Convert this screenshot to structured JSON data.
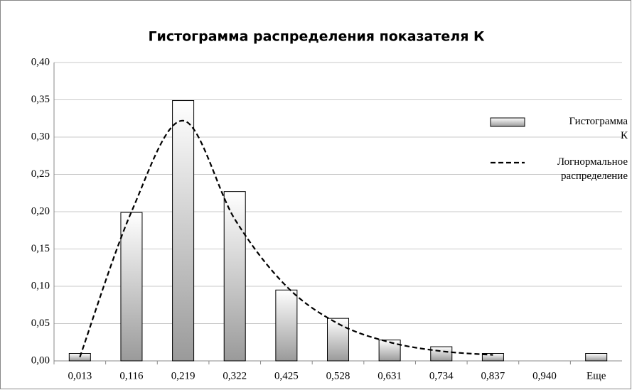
{
  "chart_data": {
    "type": "bar",
    "title": "Гистограмма распределения показателя К",
    "categories": [
      "0,013",
      "0,116",
      "0,219",
      "0,322",
      "0,425",
      "0,528",
      "0,631",
      "0,734",
      "0,837",
      "0,940",
      "Еще"
    ],
    "series": [
      {
        "name": "Гистограмма К",
        "type": "bar",
        "color": "#9a9a9a",
        "values": [
          0.01,
          0.199,
          0.349,
          0.227,
          0.095,
          0.057,
          0.028,
          0.019,
          0.01,
          0,
          0.01
        ]
      },
      {
        "name": "Логнормальное распределение",
        "type": "line",
        "color": "#000000",
        "dashed": true,
        "values": [
          0.005,
          0.2,
          0.322,
          0.19,
          0.1,
          0.05,
          0.025,
          0.013,
          0.008,
          null,
          null
        ]
      }
    ],
    "ylim": [
      0,
      0.4
    ],
    "yticks": [
      {
        "value": 0,
        "label": "0,00"
      },
      {
        "value": 0.05,
        "label": "0,05"
      },
      {
        "value": 0.1,
        "label": "0,10"
      },
      {
        "value": 0.15,
        "label": "0,15"
      },
      {
        "value": 0.2,
        "label": "0,20"
      },
      {
        "value": 0.25,
        "label": "0,25"
      },
      {
        "value": 0.3,
        "label": "0,30"
      },
      {
        "value": 0.35,
        "label": "0,35"
      },
      {
        "value": 0.4,
        "label": "0,40"
      }
    ],
    "grid": true,
    "legend": "right"
  }
}
